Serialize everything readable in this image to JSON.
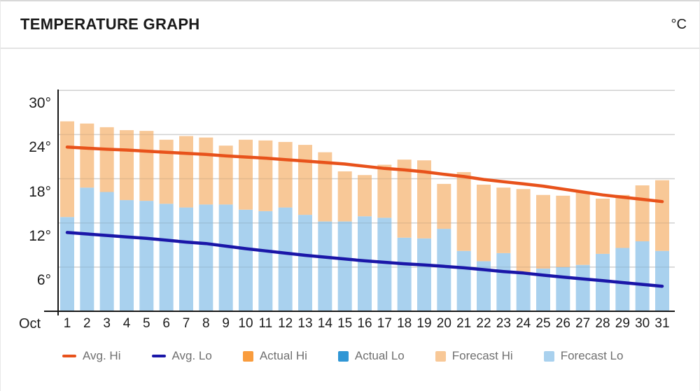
{
  "header": {
    "title": "TEMPERATURE GRAPH",
    "unit": "°C"
  },
  "legend": {
    "items": [
      {
        "label": "Avg. Hi",
        "swatch": "line",
        "color": "#e8521b"
      },
      {
        "label": "Avg. Lo",
        "swatch": "line",
        "color": "#1a16a8"
      },
      {
        "label": "Actual Hi",
        "swatch": "box",
        "color": "#f99c3d"
      },
      {
        "label": "Actual Lo",
        "swatch": "box",
        "color": "#2f96d5"
      },
      {
        "label": "Forecast Hi",
        "swatch": "box",
        "color": "#f8c897"
      },
      {
        "label": "Forecast Lo",
        "swatch": "box",
        "color": "#a9d1ee"
      }
    ]
  },
  "chart_data": {
    "type": "bar",
    "title": "TEMPERATURE GRAPH",
    "unit": "°C",
    "x_month_label": "Oct",
    "categories": [
      1,
      2,
      3,
      4,
      5,
      6,
      7,
      8,
      9,
      10,
      11,
      12,
      13,
      14,
      15,
      16,
      17,
      18,
      19,
      20,
      21,
      22,
      23,
      24,
      25,
      26,
      27,
      28,
      29,
      30,
      31
    ],
    "y_ticks": [
      "30°",
      "24°",
      "18°",
      "12°",
      "6°"
    ],
    "y_tick_values": [
      30,
      24,
      18,
      12,
      6
    ],
    "ylim": [
      0,
      30
    ],
    "grid": true,
    "legend_position": "bottom",
    "colors": {
      "grid": "#e2e2e2",
      "grid_over_bars": "rgba(60,60,60,0.10)",
      "axis": "#161616"
    },
    "series": [
      {
        "name": "Avg. Hi",
        "type": "line",
        "color": "#e8521b",
        "values": [
          22.3,
          22.15,
          22.0,
          21.9,
          21.75,
          21.6,
          21.45,
          21.3,
          21.1,
          20.95,
          20.8,
          20.6,
          20.4,
          20.2,
          20.0,
          19.7,
          19.4,
          19.2,
          18.95,
          18.6,
          18.3,
          17.9,
          17.6,
          17.3,
          17.0,
          16.6,
          16.2,
          15.8,
          15.5,
          15.2,
          14.9
        ]
      },
      {
        "name": "Avg. Lo",
        "type": "line",
        "color": "#1a16a8",
        "values": [
          10.7,
          10.5,
          10.3,
          10.1,
          9.9,
          9.65,
          9.4,
          9.2,
          8.85,
          8.5,
          8.2,
          7.9,
          7.6,
          7.35,
          7.1,
          6.85,
          6.65,
          6.45,
          6.3,
          6.1,
          5.9,
          5.65,
          5.4,
          5.2,
          4.9,
          4.65,
          4.4,
          4.15,
          3.9,
          3.65,
          3.4
        ]
      },
      {
        "name": "Actual Hi",
        "type": "bar",
        "color": "#f99c3d",
        "values": []
      },
      {
        "name": "Actual Lo",
        "type": "bar",
        "color": "#2f96d5",
        "values": []
      },
      {
        "name": "Forecast Hi",
        "type": "bar",
        "color": "#f8c897",
        "values": [
          25.8,
          25.5,
          25.0,
          24.6,
          24.5,
          23.3,
          23.8,
          23.6,
          22.5,
          23.3,
          23.2,
          23.0,
          22.6,
          21.6,
          19.0,
          18.5,
          19.9,
          20.6,
          20.5,
          17.3,
          18.9,
          17.2,
          16.8,
          16.6,
          15.8,
          15.7,
          16.2,
          15.3,
          15.8,
          17.1,
          17.8
        ]
      },
      {
        "name": "Forecast Lo",
        "type": "bar",
        "color": "#a9d1ee",
        "values": [
          12.8,
          16.8,
          16.2,
          15.1,
          15.0,
          14.6,
          14.1,
          14.5,
          14.5,
          13.8,
          13.6,
          14.1,
          13.1,
          12.2,
          12.2,
          12.9,
          12.7,
          10.0,
          9.9,
          11.2,
          8.2,
          6.8,
          7.9,
          5.2,
          5.8,
          6.0,
          6.3,
          7.8,
          8.6,
          9.5,
          8.2
        ]
      }
    ]
  }
}
